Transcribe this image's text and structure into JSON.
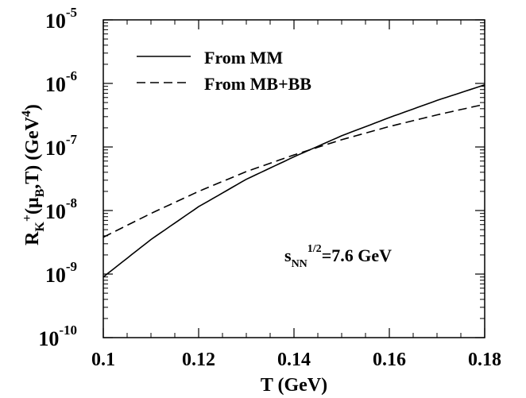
{
  "chart_data": {
    "type": "line",
    "title": "",
    "xlabel": "T (GeV)",
    "ylabel": {
      "base": "R",
      "sub1": "K",
      "sup1": "+",
      "mid": "(μ",
      "sub2": "B",
      "mid2": ",T) (GeV",
      "sup2": "4",
      "end": ")"
    },
    "xlim": [
      0.1,
      0.18
    ],
    "ylim": [
      1e-10,
      1e-05
    ],
    "yscale": "log",
    "grid": false,
    "legend_position": "top-left",
    "x_ticks": [
      {
        "value": 0.1,
        "label": "0.1"
      },
      {
        "value": 0.12,
        "label": "0.12"
      },
      {
        "value": 0.14,
        "label": "0.14"
      },
      {
        "value": 0.16,
        "label": "0.16"
      },
      {
        "value": 0.18,
        "label": "0.18"
      }
    ],
    "y_ticks": [
      {
        "exp": -10,
        "base": "10",
        "sup": "-10"
      },
      {
        "exp": -9,
        "base": "10",
        "sup": "-9"
      },
      {
        "exp": -8,
        "base": "10",
        "sup": "-8"
      },
      {
        "exp": -7,
        "base": "10",
        "sup": "-7"
      },
      {
        "exp": -6,
        "base": "10",
        "sup": "-6"
      },
      {
        "exp": -5,
        "base": "10",
        "sup": "-5"
      }
    ],
    "series": [
      {
        "name": "From MM",
        "dash": "solid",
        "x": [
          0.1,
          0.11,
          0.12,
          0.13,
          0.14,
          0.15,
          0.16,
          0.17,
          0.18
        ],
        "y": [
          9e-10,
          3.5e-09,
          1.15e-08,
          3.1e-08,
          7e-08,
          1.5e-07,
          2.9e-07,
          5.4e-07,
          9.5e-07
        ]
      },
      {
        "name": "From MB+BB",
        "dash": "dashed",
        "x": [
          0.1,
          0.11,
          0.12,
          0.13,
          0.14,
          0.15,
          0.16,
          0.17,
          0.18
        ],
        "y": [
          3.8e-09,
          9e-09,
          2e-08,
          4.1e-08,
          7.5e-08,
          1.3e-07,
          2.1e-07,
          3.2e-07,
          4.7e-07
        ]
      }
    ],
    "annotation": {
      "base": "s",
      "sub": "NN",
      "sup": "1/2",
      "rest": "=7.6 GeV"
    }
  }
}
